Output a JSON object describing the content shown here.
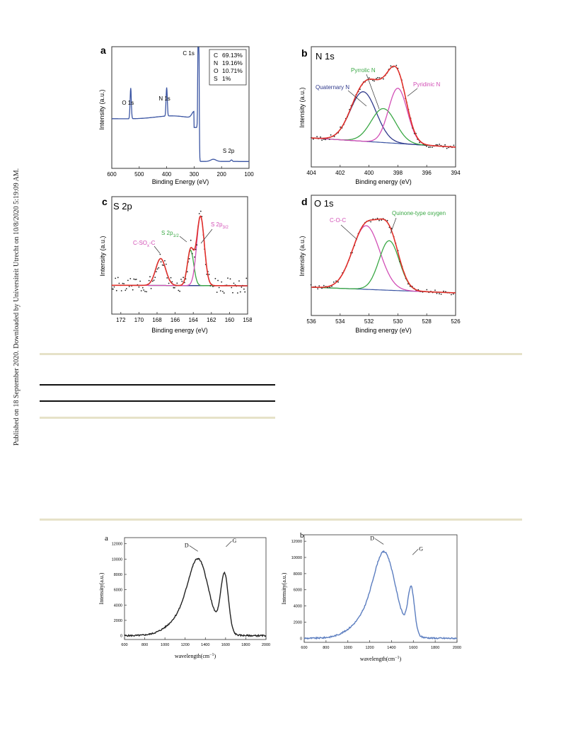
{
  "side_note": "Published on 18 September 2020. Downloaded by Universiteit Utrecht on 10/8/2020 5:19:09 AM.",
  "colors": {
    "survey": "#3b55a3",
    "fit": "#e0302a",
    "green": "#3aa845",
    "magenta": "#d24fb6",
    "navy": "#303a8c",
    "base": "#3b55a3",
    "raman_a": "#222222",
    "raman_b": "#5c7ec0"
  },
  "chart_data": [
    {
      "id": "a",
      "type": "line",
      "panel_label": "a",
      "title": "",
      "xlabel": "Binding Energy (eV)",
      "ylabel": "Intensity (a.u.)",
      "xlim": [
        600,
        100
      ],
      "x_ticks": [
        600,
        500,
        400,
        300,
        200,
        100
      ],
      "peaks": [
        {
          "label": "O 1s",
          "x": 531
        },
        {
          "label": "N 1s",
          "x": 400
        },
        {
          "label": "C 1s",
          "x": 284
        },
        {
          "label": "S 2p",
          "x": 164
        }
      ],
      "legend": [
        {
          "element": "C",
          "value": "69.13%"
        },
        {
          "element": "N",
          "value": "19.16%"
        },
        {
          "element": "O",
          "value": "10.71%"
        },
        {
          "element": "S",
          "value": "1%"
        }
      ]
    },
    {
      "id": "b",
      "type": "line",
      "panel_label": "b",
      "title": "N 1s",
      "xlabel": "Binding energy (eV)",
      "ylabel": "Intensity (a.u.)",
      "xlim": [
        404,
        394
      ],
      "x_ticks": [
        404,
        402,
        400,
        398,
        396,
        394
      ],
      "series": [
        {
          "name": "Quaternary N",
          "center": 400.4
        },
        {
          "name": "Pyrrolic N",
          "center": 399.0
        },
        {
          "name": "Pyridinic N",
          "center": 398.0
        }
      ]
    },
    {
      "id": "c",
      "type": "line",
      "panel_label": "c",
      "title": "S 2p",
      "xlabel": "Binding energy (eV)",
      "ylabel": "Intensity (a.u.)",
      "xlim": [
        173,
        158
      ],
      "x_ticks": [
        172,
        170,
        168,
        166,
        164,
        162,
        160,
        158
      ],
      "series": [
        {
          "name": "C-SOₓ-C",
          "name_main": "C-SO",
          "name_sub": "x",
          "name_tail": "-C",
          "center": 167.6
        },
        {
          "name": "S 2p1/2",
          "name_main": "S 2p",
          "name_sub": "1/2",
          "center": 164.3
        },
        {
          "name": "S 2p3/2",
          "name_main": "S 2p",
          "name_sub": "3/2",
          "center": 163.2
        }
      ]
    },
    {
      "id": "d",
      "type": "line",
      "panel_label": "d",
      "title": "O 1s",
      "xlabel": "Binding energy (eV)",
      "ylabel": "Intensity (a.u.)",
      "xlim": [
        536,
        526
      ],
      "x_ticks": [
        536,
        534,
        532,
        530,
        528,
        526
      ],
      "series": [
        {
          "name": "C-O-C",
          "center": 532.2
        },
        {
          "name": "Quinone-type oxygen",
          "center": 530.6
        }
      ]
    },
    {
      "id": "raman_a",
      "type": "line",
      "panel_label": "a",
      "title": "",
      "xlabel_main": "wavelength(cm",
      "xlabel_sup": "−1",
      "xlabel_tail": ")",
      "ylabel": "Intensity(a.u.)",
      "xlim": [
        600,
        2000
      ],
      "ylim": [
        -500,
        12800
      ],
      "x_ticks": [
        600,
        800,
        1000,
        1200,
        1400,
        1600,
        1800,
        2000
      ],
      "y_ticks": [
        0,
        2000,
        4000,
        6000,
        8000,
        10000,
        12000
      ],
      "peaks": [
        {
          "label": "D",
          "x": 1340,
          "y": 11200
        },
        {
          "label": "G",
          "x": 1590,
          "y": 11800
        }
      ]
    },
    {
      "id": "raman_b",
      "type": "line",
      "panel_label": "b",
      "title": "",
      "xlabel_main": "wavelength(cm",
      "xlabel_sup": "−1",
      "xlabel_tail": ")",
      "ylabel": "Intensity(a.u.)",
      "xlim": [
        600,
        2000
      ],
      "ylim": [
        -500,
        12800
      ],
      "x_ticks": [
        600,
        800,
        1000,
        1200,
        1400,
        1600,
        1800,
        2000
      ],
      "y_ticks": [
        0,
        2000,
        4000,
        6000,
        8000,
        10000,
        12000
      ],
      "peaks": [
        {
          "label": "D",
          "x": 1340,
          "y": 11800
        },
        {
          "label": "G",
          "x": 1580,
          "y": 10500
        }
      ]
    }
  ]
}
